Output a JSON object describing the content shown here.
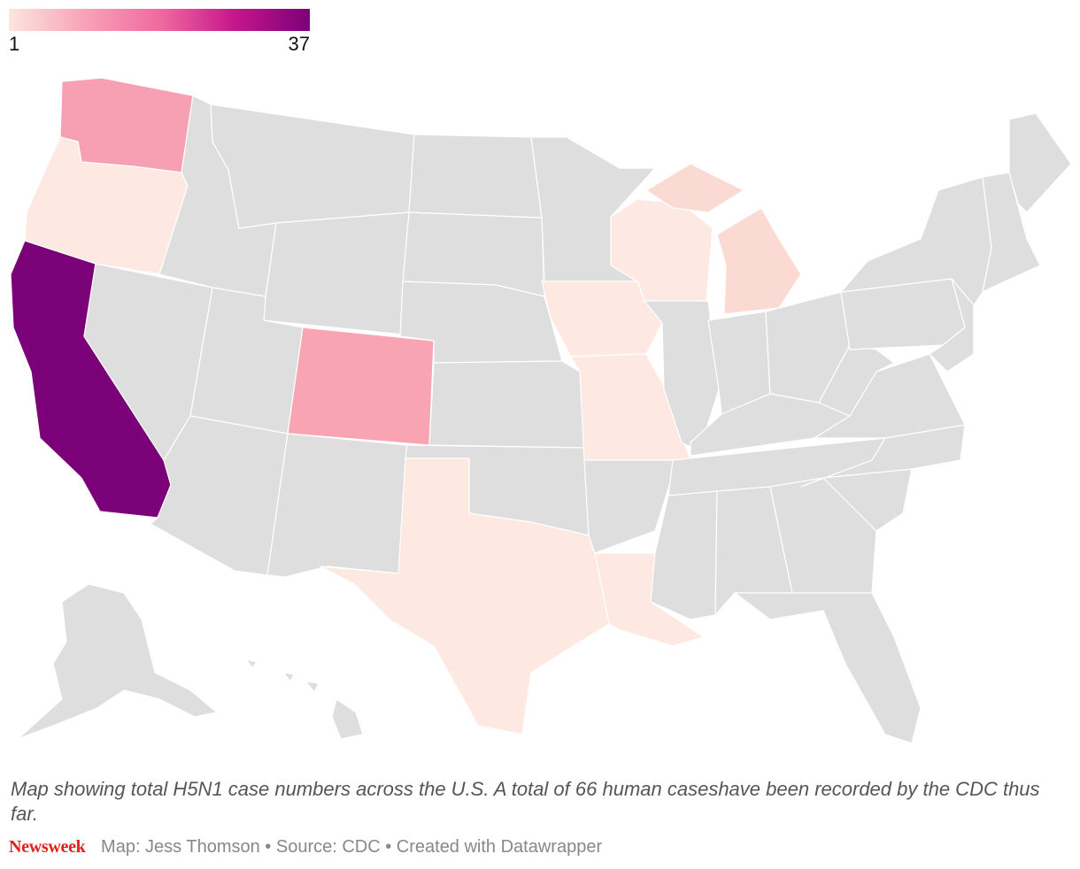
{
  "legend": {
    "min_label": "1",
    "max_label": "37",
    "min": 1,
    "max": 37,
    "gradient": [
      "#fde5df",
      "#f8a3b7",
      "#f06aa0",
      "#c7168c",
      "#7a0177"
    ]
  },
  "caption": "Map showing total H5N1 case numbers across the U.S. A total of 66 human caseshave been recorded by the CDC thus far.",
  "footer": {
    "brand": "Newsweek",
    "credits": "Map: Jess Thomson • Source: CDC • Created with Datawrapper"
  },
  "colors": {
    "no_data": "#dedede",
    "border": "#ffffff"
  },
  "states": [
    {
      "name": "Washington",
      "color": "#f7a0b4"
    },
    {
      "name": "Oregon",
      "color": "#fde9e2"
    },
    {
      "name": "California",
      "color": "#7a0177"
    },
    {
      "name": "Nevada",
      "color": "#dedede"
    },
    {
      "name": "Idaho",
      "color": "#dedede"
    },
    {
      "name": "Montana",
      "color": "#dedede"
    },
    {
      "name": "Wyoming",
      "color": "#dedede"
    },
    {
      "name": "Utah",
      "color": "#dedede"
    },
    {
      "name": "Arizona",
      "color": "#dedede"
    },
    {
      "name": "Colorado",
      "color": "#f8a4b3"
    },
    {
      "name": "New Mexico",
      "color": "#dedede"
    },
    {
      "name": "North Dakota",
      "color": "#dedede"
    },
    {
      "name": "South Dakota",
      "color": "#dedede"
    },
    {
      "name": "Nebraska",
      "color": "#dedede"
    },
    {
      "name": "Kansas",
      "color": "#dedede"
    },
    {
      "name": "Oklahoma",
      "color": "#dedede"
    },
    {
      "name": "Texas",
      "color": "#fde9e2"
    },
    {
      "name": "Minnesota",
      "color": "#dedede"
    },
    {
      "name": "Iowa",
      "color": "#fde9e2"
    },
    {
      "name": "Missouri",
      "color": "#fde9e2"
    },
    {
      "name": "Arkansas",
      "color": "#dedede"
    },
    {
      "name": "Louisiana",
      "color": "#fde9e2"
    },
    {
      "name": "Wisconsin",
      "color": "#fde9e2"
    },
    {
      "name": "Michigan",
      "color": "#fcdad4"
    },
    {
      "name": "Illinois",
      "color": "#dedede"
    },
    {
      "name": "Indiana",
      "color": "#dedede"
    },
    {
      "name": "Ohio",
      "color": "#dedede"
    },
    {
      "name": "Kentucky",
      "color": "#dedede"
    },
    {
      "name": "Tennessee",
      "color": "#dedede"
    },
    {
      "name": "Mississippi",
      "color": "#dedede"
    },
    {
      "name": "Alabama",
      "color": "#dedede"
    },
    {
      "name": "Georgia",
      "color": "#dedede"
    },
    {
      "name": "Florida",
      "color": "#dedede"
    },
    {
      "name": "South Carolina",
      "color": "#dedede"
    },
    {
      "name": "North Carolina",
      "color": "#dedede"
    },
    {
      "name": "Virginia",
      "color": "#dedede"
    },
    {
      "name": "West Virginia",
      "color": "#dedede"
    },
    {
      "name": "Pennsylvania",
      "color": "#dedede"
    },
    {
      "name": "New York",
      "color": "#dedede"
    },
    {
      "name": "New England",
      "color": "#dedede"
    },
    {
      "name": "Mid-Atlantic",
      "color": "#dedede"
    },
    {
      "name": "Maine",
      "color": "#dedede"
    },
    {
      "name": "Alaska",
      "color": "#dedede"
    },
    {
      "name": "Hawaii",
      "color": "#dedede"
    }
  ]
}
